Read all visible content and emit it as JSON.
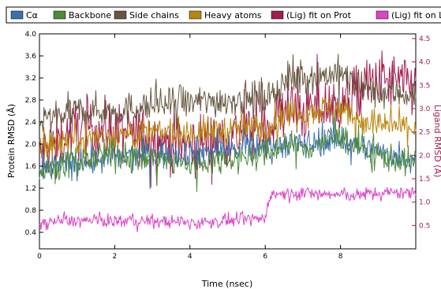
{
  "chart_data": {
    "type": "line",
    "x_range": [
      0,
      10
    ],
    "y_left_range": [
      0.1,
      4.0
    ],
    "y_right_range": [
      0.0,
      4.6
    ],
    "x_ticks": [
      "0",
      "2",
      "4",
      "6",
      "8"
    ],
    "x_tick_values": [
      0,
      2,
      4,
      6,
      8
    ],
    "y_left_ticks": [
      "0.4",
      "0.8",
      "1.2",
      "1.6",
      "2.0",
      "2.4",
      "2.8",
      "3.2",
      "3.6",
      "4.0"
    ],
    "y_left_tick_values": [
      0.4,
      0.8,
      1.2,
      1.6,
      2.0,
      2.4,
      2.8,
      3.2,
      3.6,
      4.0
    ],
    "y_right_ticks": [
      "0.5",
      "1.0",
      "1.5",
      "2.0",
      "2.5",
      "3.0",
      "3.5",
      "4.0",
      "4.5"
    ],
    "y_right_tick_values": [
      0.5,
      1.0,
      1.5,
      2.0,
      2.5,
      3.0,
      3.5,
      4.0,
      4.5
    ],
    "xlabel": "Time (nsec)",
    "ylabel_left": "Protein RMSD (Å)",
    "ylabel_right": "Ligand RMSD (Å)",
    "legend_placement": "top",
    "grid": false,
    "series": [
      {
        "name": "Cα",
        "color": "#3a6fb0",
        "axis": "left",
        "x": [
          0,
          0.5,
          1,
          2,
          3,
          4,
          5,
          6,
          6.5,
          7,
          8,
          8.5,
          9,
          10
        ],
        "y": [
          1.45,
          1.6,
          1.65,
          1.75,
          1.8,
          1.85,
          1.9,
          1.95,
          2.0,
          2.0,
          2.1,
          1.95,
          1.85,
          1.75
        ]
      },
      {
        "name": "Backbone",
        "color": "#4e8a3a",
        "axis": "left",
        "x": [
          0,
          0.5,
          1,
          2,
          3,
          4,
          5,
          6,
          6.5,
          7,
          8,
          8.5,
          9,
          10
        ],
        "y": [
          1.5,
          1.6,
          1.7,
          1.8,
          1.75,
          1.6,
          1.75,
          1.8,
          2.0,
          1.9,
          2.15,
          1.95,
          1.8,
          1.65
        ]
      },
      {
        "name": "Side chains",
        "color": "#665840",
        "axis": "left",
        "x": [
          0,
          0.5,
          1,
          2,
          3,
          4,
          5,
          6,
          6.5,
          7,
          8,
          8.5,
          9,
          10
        ],
        "y": [
          2.4,
          2.5,
          2.6,
          2.6,
          2.7,
          2.75,
          2.8,
          2.85,
          3.1,
          3.2,
          3.3,
          3.0,
          2.95,
          2.9
        ]
      },
      {
        "name": "Heavy atoms",
        "color": "#b8860b",
        "axis": "left",
        "x": [
          0,
          0.5,
          1,
          2,
          3,
          4,
          5,
          6,
          6.5,
          7,
          8,
          8.5,
          9,
          10
        ],
        "y": [
          1.95,
          2.05,
          2.1,
          2.15,
          2.2,
          2.2,
          2.25,
          2.3,
          2.55,
          2.6,
          2.65,
          2.45,
          2.35,
          2.3
        ]
      },
      {
        "name": "(Lig) fit on Prot",
        "color": "#a31d4e",
        "axis": "right",
        "x": [
          0,
          0.5,
          1,
          2,
          3,
          4,
          5,
          6,
          6.5,
          7,
          8,
          8.5,
          9,
          10
        ],
        "y": [
          2.0,
          2.3,
          2.6,
          2.5,
          2.4,
          2.2,
          2.4,
          2.6,
          3.0,
          2.9,
          3.1,
          3.4,
          3.6,
          3.5
        ]
      },
      {
        "name": "(Lig) fit on Lig",
        "color": "#da45c8",
        "axis": "right",
        "x": [
          0,
          0.5,
          1,
          2,
          3,
          4,
          5,
          6,
          6.1,
          7,
          8,
          8.5,
          9,
          10
        ],
        "y": [
          0.55,
          0.6,
          0.6,
          0.6,
          0.6,
          0.55,
          0.6,
          0.65,
          1.15,
          1.2,
          1.15,
          1.15,
          1.2,
          1.2
        ]
      }
    ]
  }
}
